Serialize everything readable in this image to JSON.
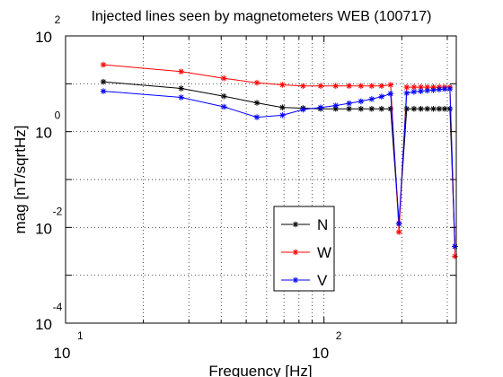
{
  "chart_data": {
    "type": "line",
    "title": "Injected lines seen by magnetometers WEB (100717)",
    "xlabel": "Frequency [Hz]",
    "ylabel": "mag [nT/sqrtHz]",
    "xscale": "log",
    "yscale": "log",
    "xlim": [
      10,
      325
    ],
    "ylim": [
      0.0001,
      100
    ],
    "grid": true,
    "legend_position": "lower-center",
    "x_ticks": [
      {
        "value": 10,
        "base": "10",
        "exp": "1"
      },
      {
        "value": 100,
        "base": "10",
        "exp": "2"
      }
    ],
    "y_ticks": [
      {
        "value": 100,
        "base": "10",
        "exp": "2"
      },
      {
        "value": 1,
        "base": "10",
        "exp": "0"
      },
      {
        "value": 0.01,
        "base": "10",
        "exp": "-2"
      },
      {
        "value": 0.0001,
        "base": "10",
        "exp": "-4"
      }
    ],
    "x": [
      14,
      28,
      41,
      55,
      69,
      83,
      97,
      111,
      125,
      139,
      153,
      167,
      181,
      195,
      209,
      223,
      237,
      251,
      265,
      279,
      293,
      307,
      321
    ],
    "series": [
      {
        "name": "N",
        "color": "#000000",
        "values": [
          11,
          8,
          5.5,
          4,
          3.2,
          3.1,
          3.0,
          3.0,
          3.0,
          3.0,
          3.0,
          3.0,
          3.0,
          0.012,
          3.0,
          3.0,
          3.0,
          3.0,
          3.0,
          3.0,
          3.0,
          3.0,
          0.004
        ]
      },
      {
        "name": "W",
        "color": "#ff0000",
        "values": [
          25,
          18,
          13,
          10.5,
          9.5,
          9.0,
          9.0,
          9.0,
          9.0,
          9.0,
          9.0,
          9.0,
          9.5,
          0.008,
          8.5,
          8.5,
          8.5,
          8.5,
          8.5,
          8.5,
          8.5,
          8.5,
          0.0025
        ]
      },
      {
        "name": "V",
        "color": "#0000ff",
        "values": [
          7,
          5.2,
          3.3,
          2.0,
          2.2,
          2.9,
          3.2,
          3.5,
          3.9,
          4.3,
          4.8,
          5.4,
          6.2,
          0.012,
          6.4,
          6.8,
          7.0,
          7.2,
          7.4,
          7.6,
          7.8,
          7.8,
          0.004
        ]
      }
    ]
  }
}
